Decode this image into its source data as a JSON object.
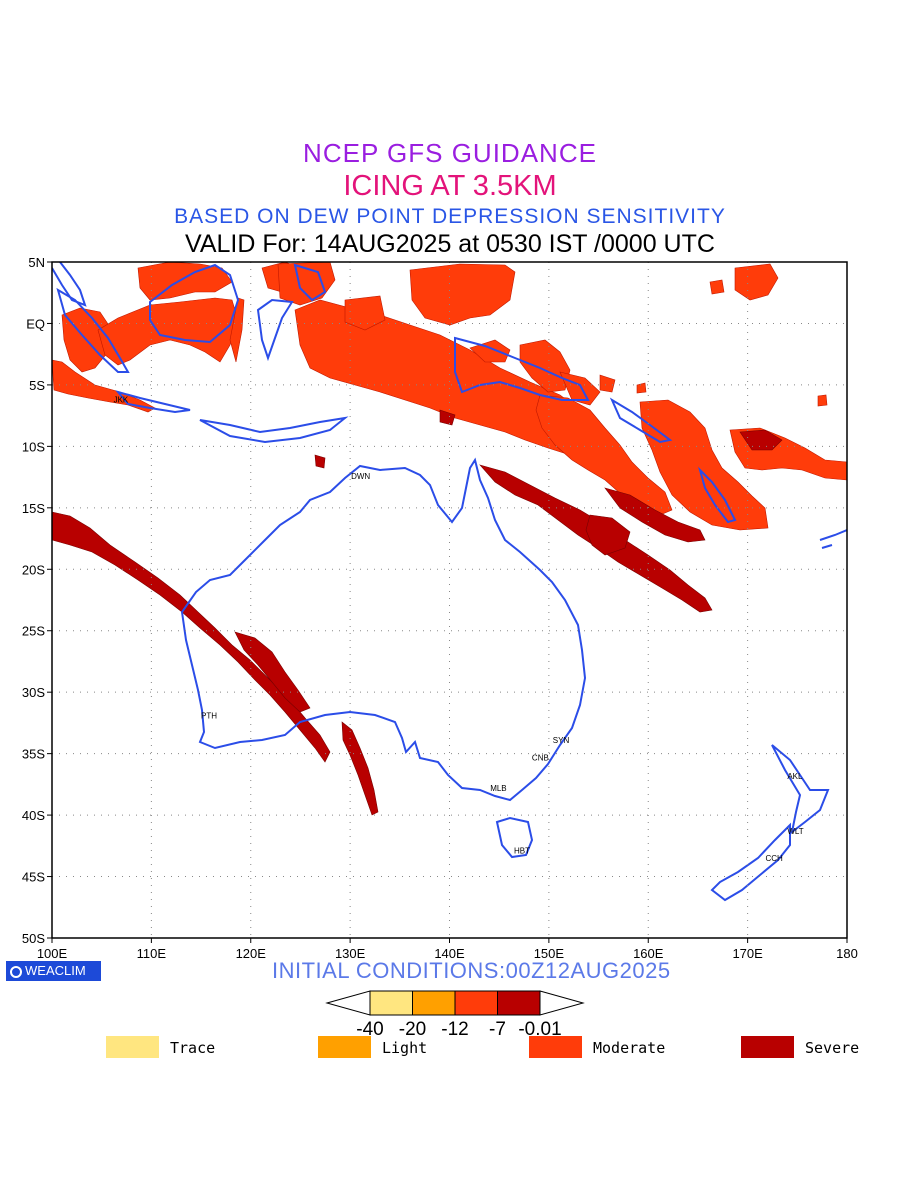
{
  "titles": {
    "line1": "NCEP GFS GUIDANCE",
    "line2": "ICING AT 3.5KM",
    "line3": "BASED ON DEW POINT DEPRESSION SENSITIVITY",
    "line4": "VALID For: 14AUG2025 at 0530 IST /0000 UTC"
  },
  "map": {
    "lon_range": [
      100,
      180
    ],
    "lat_range": [
      -50,
      5
    ],
    "lat_labels": [
      "5N",
      "EQ",
      "5S",
      "10S",
      "15S",
      "20S",
      "25S",
      "30S",
      "35S",
      "40S",
      "45S",
      "50S"
    ],
    "lon_labels": [
      "100E",
      "110E",
      "120E",
      "130E",
      "140E",
      "150E",
      "160E",
      "170E",
      "180"
    ],
    "coast_color": "#2b4de8",
    "cities": [
      {
        "name": "JKK",
        "lon": 107,
        "lat": -6.2
      },
      {
        "name": "DWN",
        "lon": 130.9,
        "lat": -12.4
      },
      {
        "name": "PTH",
        "lon": 115.8,
        "lat": -31.9
      },
      {
        "name": "SYN",
        "lon": 151.2,
        "lat": -33.9
      },
      {
        "name": "CNB",
        "lon": 149.1,
        "lat": -35.3
      },
      {
        "name": "MLB",
        "lon": 144.9,
        "lat": -37.8
      },
      {
        "name": "HBT",
        "lon": 147.3,
        "lat": -42.9
      },
      {
        "name": "AKL",
        "lon": 174.8,
        "lat": -36.8
      },
      {
        "name": "WLT",
        "lon": 174.8,
        "lat": -41.3
      },
      {
        "name": "CCH",
        "lon": 172.6,
        "lat": -43.5
      }
    ]
  },
  "branding": {
    "logo": "WEACLIM",
    "initial_conditions": "INITIAL CONDITIONS:00Z12AUG2025"
  },
  "colorbar": {
    "colors": [
      "#ffe680",
      "#ffa000",
      "#ff3c0a",
      "#b80000"
    ],
    "tick_labels": [
      "-40",
      "-20",
      "-12",
      "-7",
      "-0.01"
    ]
  },
  "legend": [
    {
      "label": "Trace",
      "color": "#ffe680"
    },
    {
      "label": "Light",
      "color": "#ffa000"
    },
    {
      "label": "Moderate",
      "color": "#ff3c0a"
    },
    {
      "label": "Severe",
      "color": "#b80000"
    }
  ]
}
